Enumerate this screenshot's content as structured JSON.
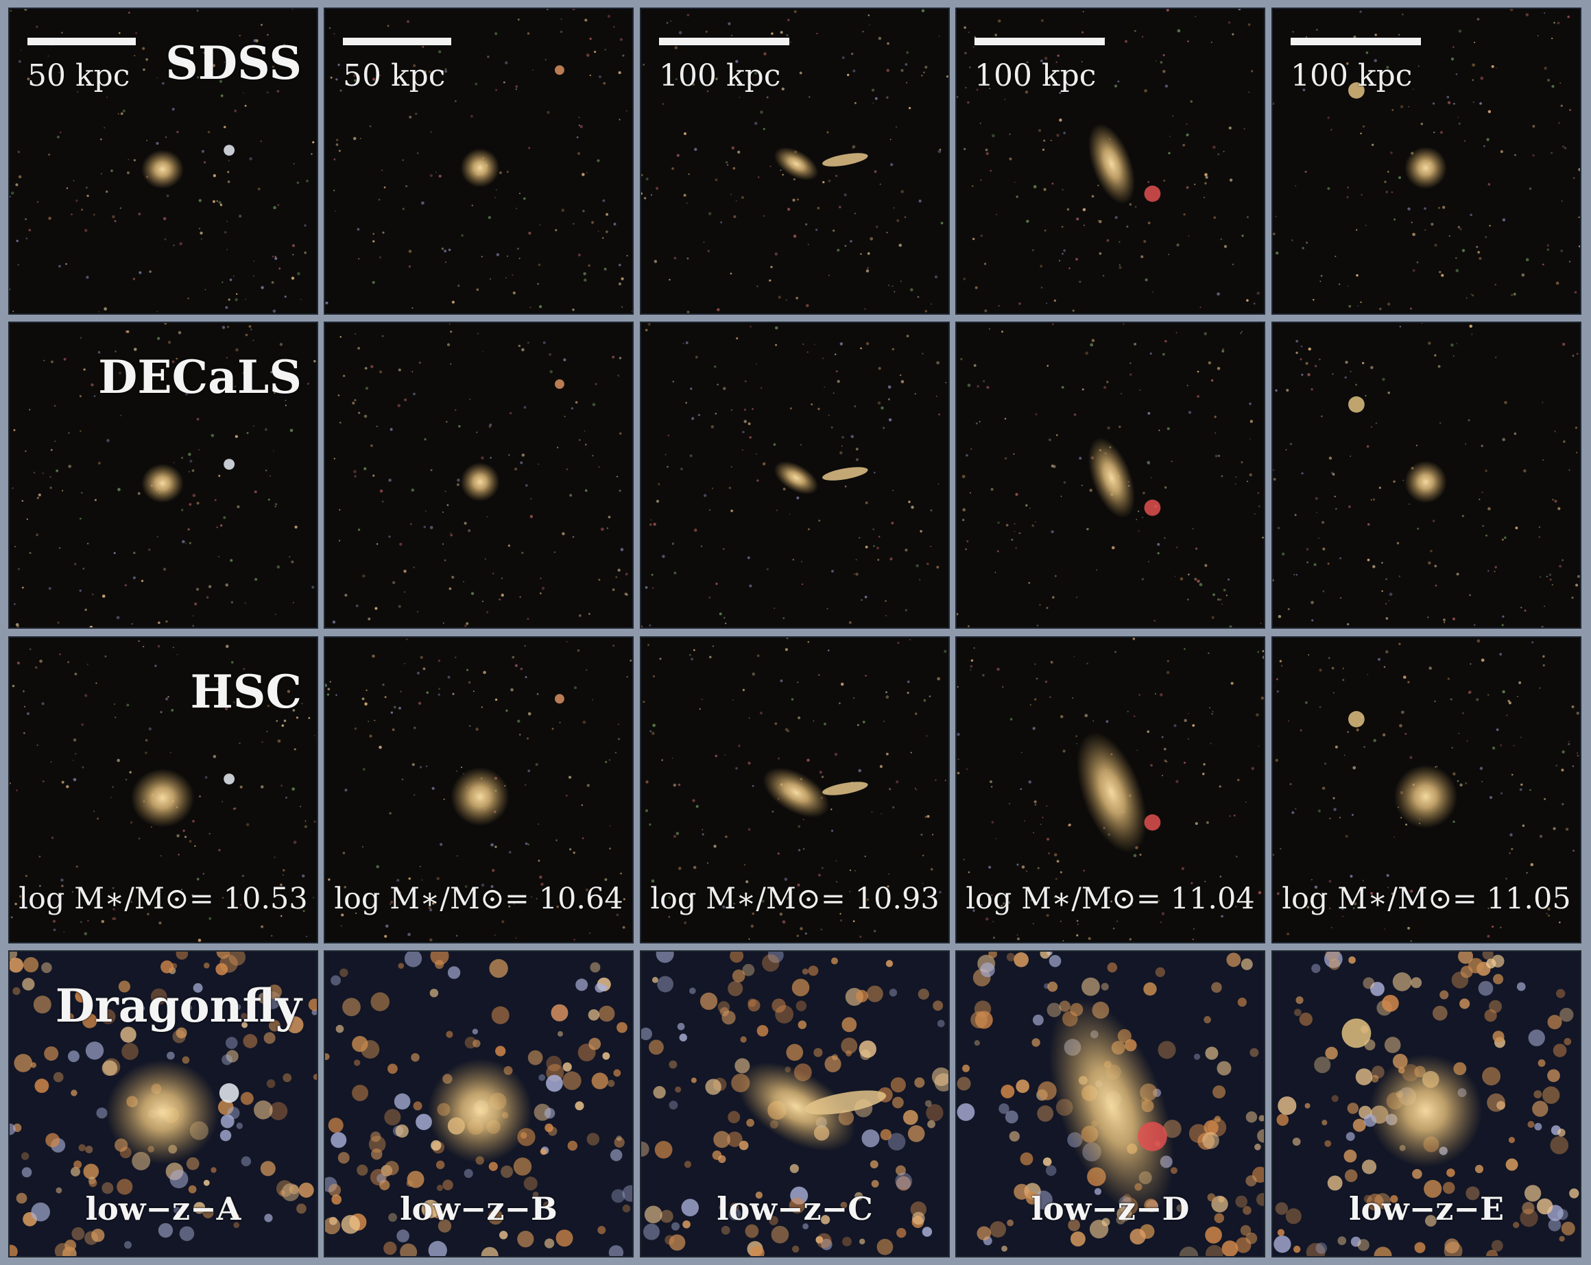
{
  "surveys": [
    "SDSS",
    "DECaLS",
    "HSC",
    "Dragonfly"
  ],
  "galaxies": [
    {
      "name": "low−z−A",
      "scale_label": "50 kpc",
      "mass_label": "log M∗/M⊙= 10.53"
    },
    {
      "name": "low−z−B",
      "scale_label": "50 kpc",
      "mass_label": "log M∗/M⊙= 10.64"
    },
    {
      "name": "low−z−C",
      "scale_label": "100 kpc",
      "mass_label": "log M∗/M⊙= 10.93"
    },
    {
      "name": "low−z−D",
      "scale_label": "100 kpc",
      "mass_label": "log M∗/M⊙= 11.04"
    },
    {
      "name": "low−z−E",
      "scale_label": "100 kpc",
      "mass_label": "log M∗/M⊙= 11.05"
    }
  ],
  "colors": {
    "frame": "#8e9aab",
    "sky": "#0c0b0a",
    "dragonfly_sky": "#121626",
    "galaxy_core": "#f3d9a0",
    "galaxy_halo": "#b08a4a"
  }
}
